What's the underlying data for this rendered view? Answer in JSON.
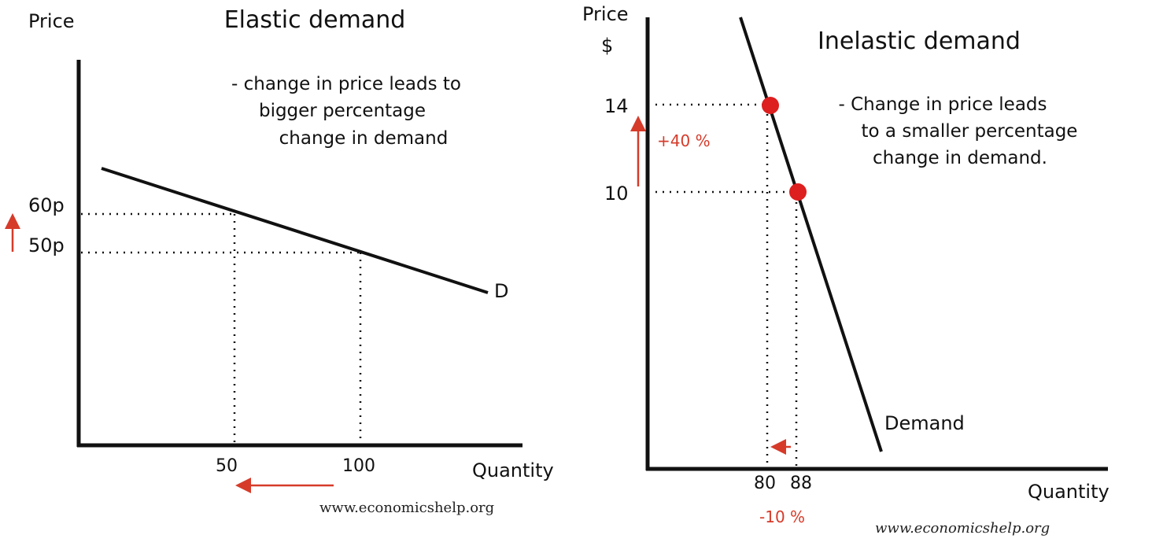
{
  "colors": {
    "line": "#111111",
    "accent": "#d63b2a",
    "marker": "#dd1f1f"
  },
  "elastic": {
    "title": "Elastic demand",
    "y_axis_label": "Price",
    "x_axis_label": "Quantity",
    "note_lines": [
      "- change in price leads to",
      "bigger percentage",
      "change in demand"
    ],
    "curve_label": "D",
    "price_high_label": "60p",
    "price_low_label": "50p",
    "qty_low_label": "50",
    "qty_high_label": "100",
    "arrows": [
      "up-arrow",
      "left-arrow"
    ],
    "watermark": "www.economicshelp.org"
  },
  "inelastic": {
    "title": "Inelastic demand",
    "y_axis_label_line1": "Price",
    "y_axis_label_line2": "$",
    "x_axis_label": "Quantity",
    "note_lines": [
      "- Change in price leads",
      "to a smaller percentage",
      "change in demand."
    ],
    "curve_label": "Demand",
    "price_high_label": "14",
    "price_low_label": "10",
    "qty_low_label": "80",
    "qty_high_label": "88",
    "price_change_label": "+40 %",
    "qty_change_label": "-10 %",
    "points": [
      {
        "price": 14,
        "quantity": 80
      },
      {
        "price": 10,
        "quantity": 88
      }
    ],
    "arrows": [
      "up-arrow",
      "left-arrow"
    ],
    "watermark": "www.economicshelp.org"
  }
}
